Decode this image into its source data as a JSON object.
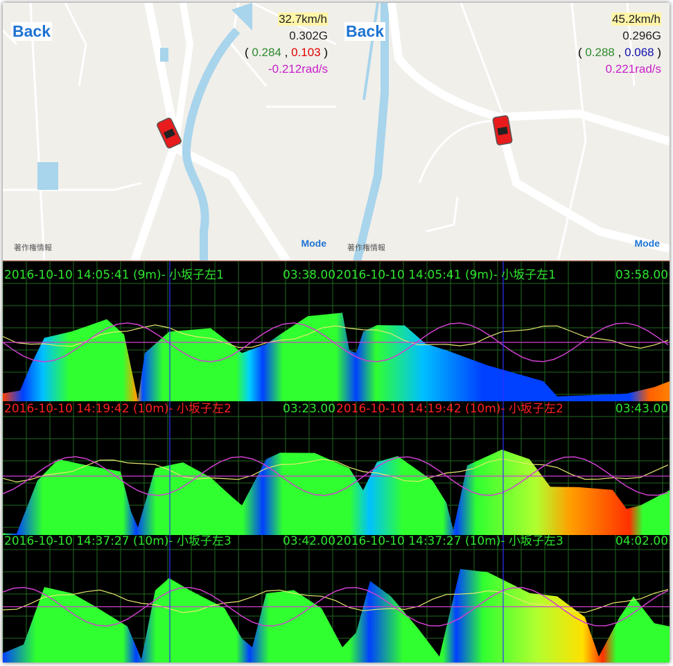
{
  "panels": [
    {
      "back_label": "Back",
      "mode_label": "Mode",
      "copyright": "著作権情報",
      "speed": "32.7km/h",
      "g_total": "0.302G",
      "g_open": "( ",
      "g_x": "0.284",
      "g_sep": " , ",
      "g_y": "0.103",
      "g_close": " )",
      "yaw_rate": "-0.212rad/s"
    },
    {
      "back_label": "Back",
      "mode_label": "Mode",
      "copyright": "著作権情報",
      "speed": "45.2km/h",
      "g_total": "0.296G",
      "g_open": "( ",
      "g_x": "0.288",
      "g_sep": " , ",
      "g_y": "0.068",
      "g_close": " )",
      "yaw_rate": "0.221rad/s"
    }
  ],
  "runs": [
    {
      "label": "2016-10-10 14:05:41 (9m)- 小坂子左1",
      "label_color": "green",
      "time_left": "03:38.00",
      "time_right": "03:58.00"
    },
    {
      "label": "2016-10-10 14:19:42 (10m)- 小坂子左2",
      "label_color": "red",
      "time_left": "03:23.00",
      "time_right": "03:43.00"
    },
    {
      "label": "2016-10-10 14:37:27 (10m)- 小坂子左3",
      "label_color": "green",
      "time_left": "03:42.00",
      "time_right": "04:02.00"
    }
  ],
  "colors": {
    "link": "#1e73d2",
    "grid": "#1f7a1f",
    "cursor": "#3030ff",
    "yaw_trace": "#d040d0",
    "g_trace": "#e8e870",
    "water": "#a8d4ec"
  }
}
